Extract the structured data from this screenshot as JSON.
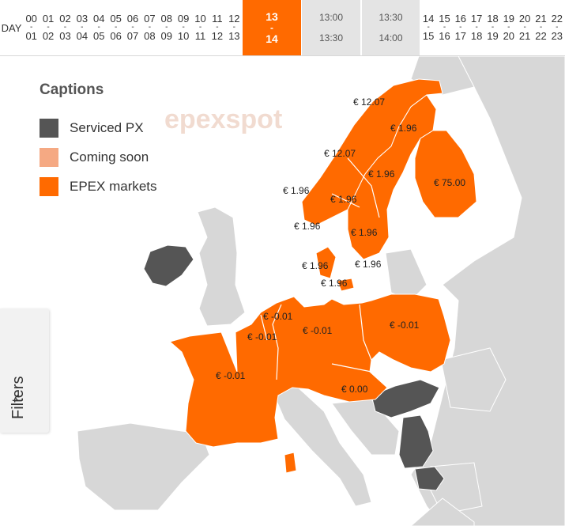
{
  "hour_bar": {
    "day_label": "DAY",
    "hours_before": [
      {
        "from": "00",
        "to": "01"
      },
      {
        "from": "01",
        "to": "02"
      },
      {
        "from": "02",
        "to": "03"
      },
      {
        "from": "03",
        "to": "04"
      },
      {
        "from": "04",
        "to": "05"
      },
      {
        "from": "05",
        "to": "06"
      },
      {
        "from": "06",
        "to": "07"
      },
      {
        "from": "07",
        "to": "08"
      },
      {
        "from": "08",
        "to": "09"
      },
      {
        "from": "09",
        "to": "10"
      },
      {
        "from": "10",
        "to": "11"
      },
      {
        "from": "11",
        "to": "12"
      },
      {
        "from": "12",
        "to": "13"
      }
    ],
    "active_hour": {
      "from": "13",
      "to": "14"
    },
    "quarter_slots": [
      {
        "from": "13:00",
        "to": "13:30"
      },
      {
        "from": "13:30",
        "to": "14:00"
      }
    ],
    "hours_after": [
      {
        "from": "14",
        "to": "15"
      },
      {
        "from": "15",
        "to": "16"
      },
      {
        "from": "16",
        "to": "17"
      },
      {
        "from": "17",
        "to": "18"
      },
      {
        "from": "18",
        "to": "19"
      },
      {
        "from": "19",
        "to": "20"
      },
      {
        "from": "20",
        "to": "21"
      },
      {
        "from": "21",
        "to": "22"
      },
      {
        "from": "22",
        "to": "23"
      }
    ]
  },
  "captions": {
    "title": "Captions",
    "items": [
      {
        "label": "Serviced PX",
        "color": "#555555"
      },
      {
        "label": "Coming soon",
        "color": "#f5a983"
      },
      {
        "label": "EPEX markets",
        "color": "#ff6a00"
      }
    ]
  },
  "map": {
    "watermark": "epexspot",
    "colors": {
      "sea": "#ffffff",
      "land": "#d7d7d7",
      "epex": "#ff6a00",
      "serviced": "#555555"
    },
    "prices": [
      "€ 12.07",
      "€ 1.96",
      "€ 12.07",
      "€ 1.96",
      "€ 75.00",
      "€ 1.96",
      "€ 1.96",
      "€ 1.96",
      "€ 1.96",
      "€ 1.96",
      "€ 1.96",
      "€ 1.96",
      "€ -0.01",
      "€ -0.01",
      "€ -0.01",
      "€ -0.01",
      "€ -0.01",
      "€ 0.00"
    ]
  },
  "filters": {
    "label": "Filters",
    "icon": "chevron-left-icon"
  }
}
